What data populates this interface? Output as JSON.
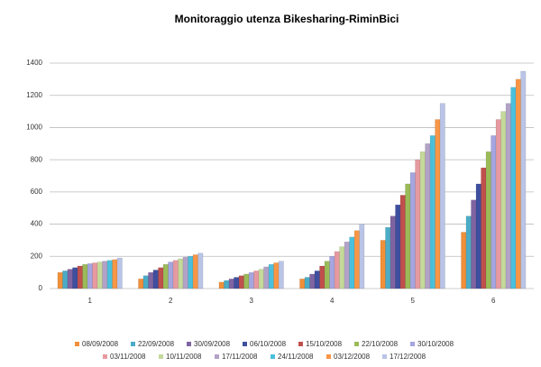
{
  "chart_data": {
    "type": "bar",
    "title": "Monitoraggio utenza Bikesharing-RiminBici",
    "categories": [
      "1",
      "2",
      "3",
      "4",
      "5",
      "6"
    ],
    "ylim": [
      0,
      1400
    ],
    "yticks": [
      0,
      200,
      400,
      600,
      800,
      1000,
      1200,
      1400
    ],
    "grid": true,
    "series": [
      {
        "name": "08/09/2008",
        "color": "#f0903a",
        "values": [
          100,
          60,
          40,
          60,
          300,
          350
        ]
      },
      {
        "name": "22/09/2008",
        "color": "#4bacc6",
        "values": [
          110,
          80,
          50,
          70,
          380,
          450
        ]
      },
      {
        "name": "30/09/2008",
        "color": "#8064a2",
        "values": [
          120,
          100,
          60,
          90,
          450,
          550
        ]
      },
      {
        "name": "06/10/2008",
        "color": "#3f4f9f",
        "values": [
          130,
          115,
          70,
          110,
          520,
          650
        ]
      },
      {
        "name": "15/10/2008",
        "color": "#c0504d",
        "values": [
          140,
          130,
          80,
          140,
          580,
          750
        ]
      },
      {
        "name": "22/10/2008",
        "color": "#9bbb59",
        "values": [
          150,
          150,
          90,
          170,
          650,
          850
        ]
      },
      {
        "name": "30/10/2008",
        "color": "#a5a5e0",
        "values": [
          155,
          165,
          100,
          200,
          720,
          950
        ]
      },
      {
        "name": "03/11/2008",
        "color": "#e69aa0",
        "values": [
          160,
          175,
          110,
          230,
          800,
          1050
        ]
      },
      {
        "name": "10/11/2008",
        "color": "#c4d99a",
        "values": [
          165,
          185,
          120,
          260,
          850,
          1100
        ]
      },
      {
        "name": "17/11/2008",
        "color": "#b3a2c7",
        "values": [
          170,
          195,
          135,
          290,
          900,
          1150
        ]
      },
      {
        "name": "24/11/2008",
        "color": "#4bc0dc",
        "values": [
          175,
          200,
          150,
          320,
          950,
          1250
        ]
      },
      {
        "name": "03/12/2008",
        "color": "#f79646",
        "values": [
          180,
          210,
          160,
          360,
          1050,
          1300
        ]
      },
      {
        "name": "17/12/2008",
        "color": "#b9c4e6",
        "values": [
          190,
          220,
          170,
          400,
          1150,
          1350
        ]
      }
    ]
  }
}
